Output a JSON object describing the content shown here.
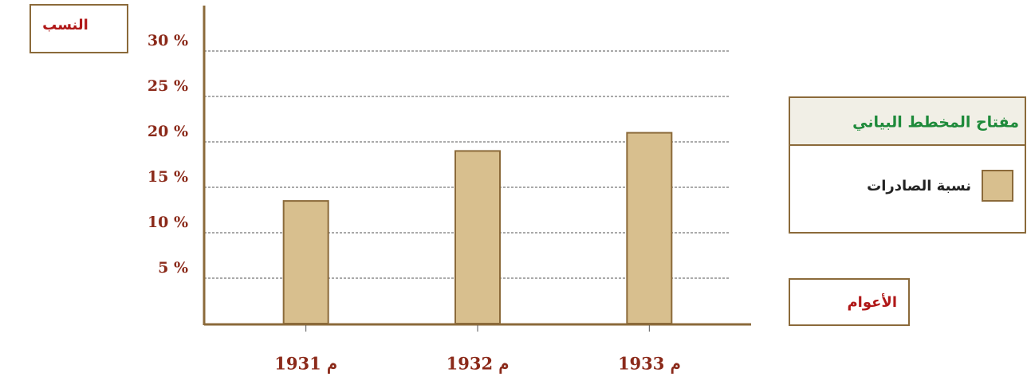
{
  "chart_data": {
    "type": "bar",
    "y_label": "النسب",
    "x_label": "الأعوام",
    "legend_title": "مفتاح المخطط البياني",
    "categories": [
      "1931 م",
      "1932 م",
      "1933 م"
    ],
    "series": [
      {
        "name": "نسبة الصادرات",
        "color": "#d8bf8e",
        "values": [
          13.5,
          19,
          21
        ]
      }
    ],
    "ylim": [
      0,
      35
    ],
    "yticks": [
      {
        "value": 5,
        "label": "5 %"
      },
      {
        "value": 10,
        "label": "10 %"
      },
      {
        "value": 15,
        "label": "15 %"
      },
      {
        "value": 20,
        "label": "20 %"
      },
      {
        "value": 25,
        "label": "25 %"
      },
      {
        "value": 30,
        "label": "30 %"
      }
    ],
    "grid": true
  }
}
